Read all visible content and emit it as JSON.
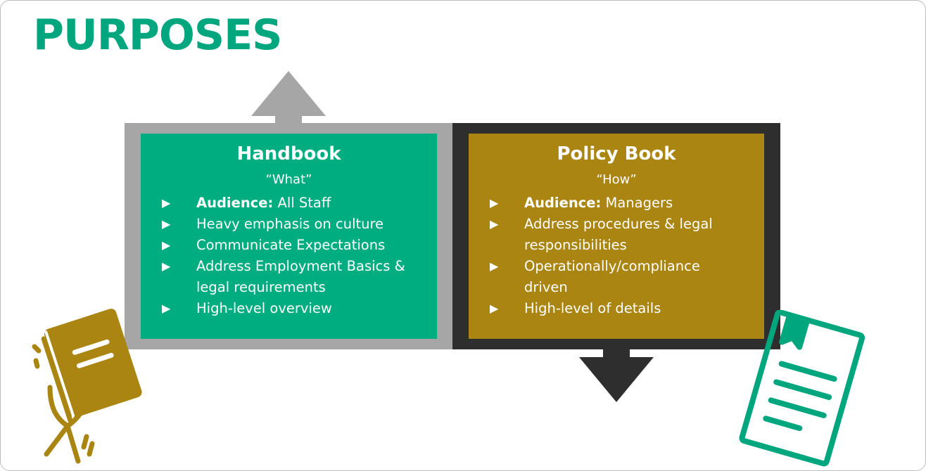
{
  "title": "PURPOSES",
  "colors": {
    "title": "#00a67e",
    "handbook_panel": "#00ad80",
    "policy_panel": "#ab8512",
    "frame_light": "#a6a6a6",
    "frame_dark": "#2e2e2e"
  },
  "handbook": {
    "heading": "Handbook",
    "subheading": "“What”",
    "items": [
      {
        "bold": "Audience:",
        "text": " All Staff"
      },
      {
        "bold": "",
        "text": "Heavy emphasis on culture"
      },
      {
        "bold": "",
        "text": "Communicate Expectations"
      },
      {
        "bold": "",
        "text": "Address Employment Basics & legal requirements"
      },
      {
        "bold": "",
        "text": "High-level overview"
      }
    ]
  },
  "policy_book": {
    "heading": "Policy Book",
    "subheading": "“How”",
    "items": [
      {
        "bold": "Audience:",
        "text": " Managers"
      },
      {
        "bold": "",
        "text": "Address procedures & legal responsibilities"
      },
      {
        "bold": "",
        "text": "Operationally/compliance driven"
      },
      {
        "bold": "",
        "text": "High-level of details"
      }
    ]
  },
  "icons": {
    "bullet": "play-triangle-icon",
    "left_illustration": "hand-holding-book-icon",
    "right_illustration": "bookmarked-document-icon"
  }
}
